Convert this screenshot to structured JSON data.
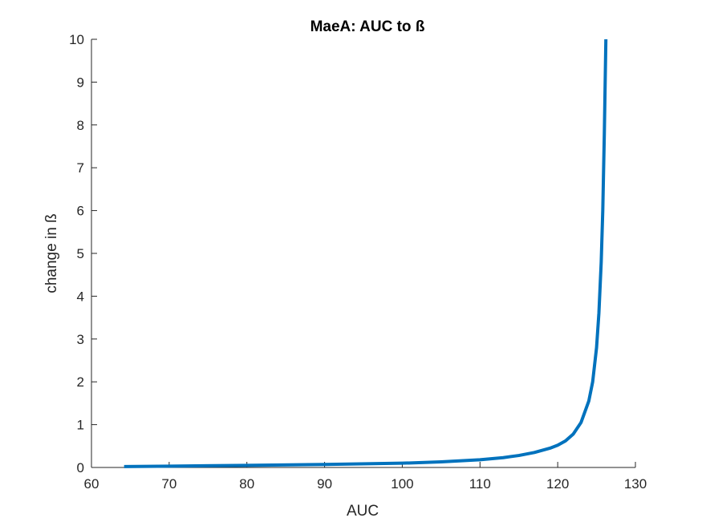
{
  "chart_data": {
    "type": "line",
    "title": "MaeA: AUC to ß",
    "xlabel": "AUC",
    "ylabel": "change in ß",
    "xlim": [
      60,
      130
    ],
    "ylim": [
      0,
      10
    ],
    "xticks": [
      "60",
      "70",
      "80",
      "90",
      "100",
      "110",
      "120",
      "130"
    ],
    "yticks": [
      "0",
      "1",
      "2",
      "3",
      "4",
      "5",
      "6",
      "7",
      "8",
      "9",
      "10"
    ],
    "grid": false,
    "series": [
      {
        "color": "#0072BD",
        "x": [
          64.2,
          70,
          80,
          90,
          100,
          105,
          110,
          113,
          115,
          117,
          119,
          120,
          121,
          122,
          123,
          124,
          124.5,
          125,
          125.3,
          125.6,
          125.8,
          126.0,
          126.2
        ],
        "y": [
          0.02,
          0.03,
          0.05,
          0.07,
          0.1,
          0.13,
          0.18,
          0.23,
          0.28,
          0.35,
          0.45,
          0.52,
          0.62,
          0.78,
          1.05,
          1.55,
          2.0,
          2.8,
          3.6,
          4.8,
          6.0,
          7.8,
          10.0
        ]
      }
    ]
  }
}
